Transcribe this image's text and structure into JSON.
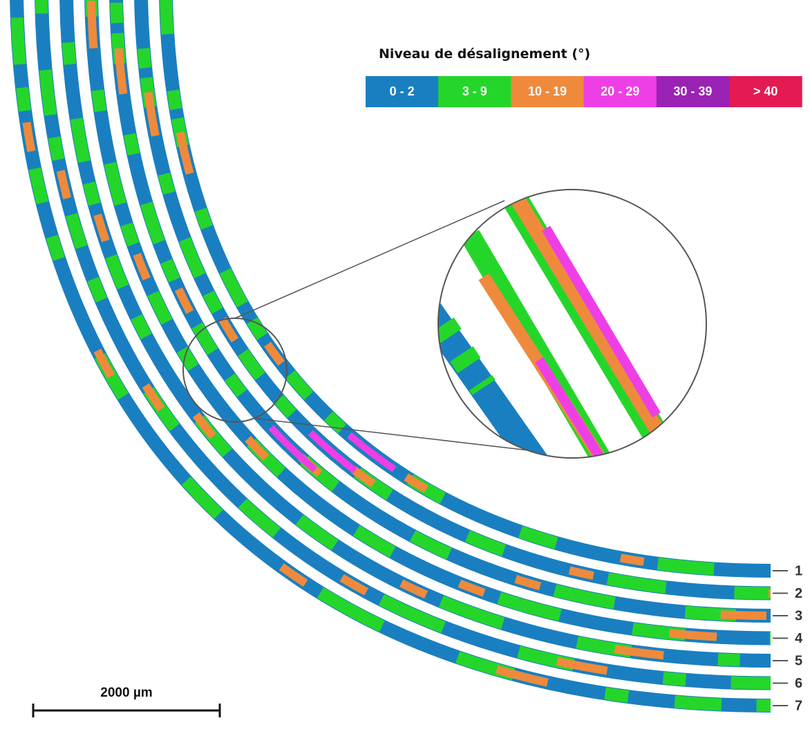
{
  "legend": {
    "title": "Niveau de désalignement (°)",
    "items": [
      {
        "label": "0 - 2",
        "color": "#1a7fc0"
      },
      {
        "label": "3 - 9",
        "color": "#25d62a"
      },
      {
        "label": "10 - 19",
        "color": "#ef8a3c"
      },
      {
        "label": "20 - 29",
        "color": "#ee3fe6"
      },
      {
        "label": "30 - 39",
        "color": "#9a22b4"
      },
      {
        "label": "> 40",
        "color": "#e41a52"
      }
    ]
  },
  "scale_bar": {
    "label": "2000 µm"
  },
  "tows": [
    "1",
    "2",
    "3",
    "4",
    "5",
    "6",
    "7"
  ]
}
